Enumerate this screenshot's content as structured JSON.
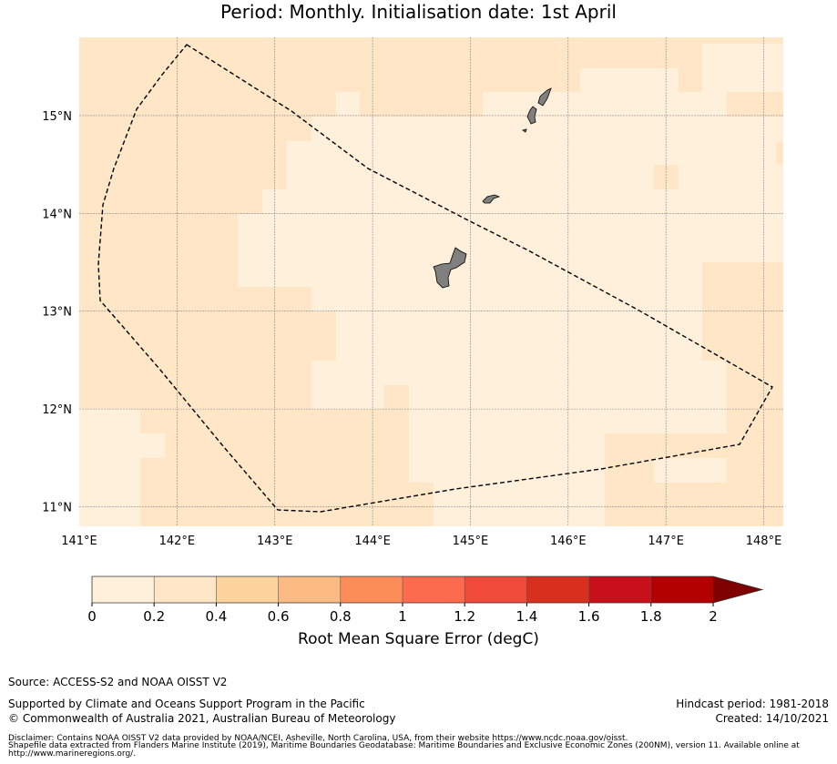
{
  "title_line2": "Period: Monthly. Initialisation date: 1st April",
  "map": {
    "lon_ticks": [
      "141°E",
      "142°E",
      "143°E",
      "144°E",
      "145°E",
      "146°E",
      "147°E",
      "148°E"
    ],
    "lat_ticks": [
      "11°N",
      "12°N",
      "13°N",
      "14°N",
      "15°N"
    ],
    "extent": {
      "lon": [
        141.0,
        148.2
      ],
      "lat": [
        10.8,
        15.8
      ]
    },
    "boundary_style": "dashed",
    "land_color": "#808080"
  },
  "colorbar": {
    "label": "Root Mean Square Error (degC)",
    "tick_labels": [
      "0",
      "0.2",
      "0.4",
      "0.6",
      "0.8",
      "1",
      "1.2",
      "1.4",
      "1.6",
      "1.8",
      "2"
    ],
    "colors": [
      "#fff0dc",
      "#fee6c7",
      "#fdd49e",
      "#fdbb84",
      "#fc8d59",
      "#fc6b4e",
      "#ef4a3a",
      "#d7301f",
      "#c8101a",
      "#b30000"
    ],
    "extend_color": "#7f0000"
  },
  "footer": {
    "source": "Source: ACCESS-S2 and NOAA OISST V2",
    "supported": "Supported by Climate and Oceans Support Program in the Pacific",
    "copyright": "© Commonwealth of Australia 2021, Australian Bureau of Meteorology",
    "hindcast": "Hindcast period: 1981-2018",
    "created": "Created: 14/10/2021",
    "disclaimer1": "Disclaimer: Contains NOAA OISST V2 data provided by NOAA/NCEI, Asheville, North Carolina, USA, from their website https://www.ncdc.noaa.gov/oisst.",
    "disclaimer2": "Shapefile data extracted from Flanders Marine Institute (2019), Maritime Boundaries Geodatabase: Maritime Boundaries and Exclusive Economic Zones (200NM), version 11. Available online at",
    "disclaimer3": "http://www.marineregions.org/."
  }
}
